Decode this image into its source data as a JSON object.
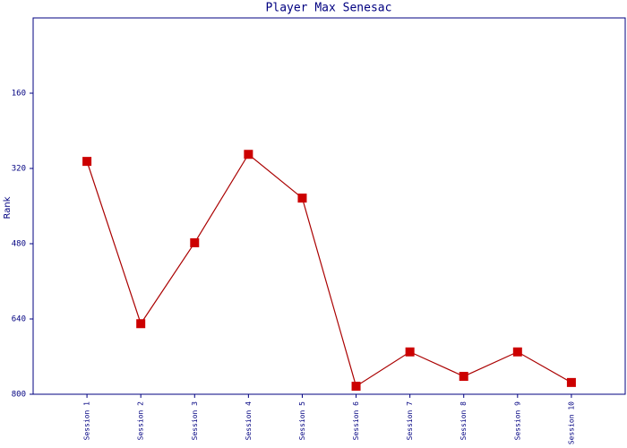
{
  "chart_data": {
    "type": "line",
    "title": "Player Max Senesac",
    "y_label": "Rank",
    "categories": [
      "Session 1",
      "Session 2",
      "Session 3",
      "Session 4",
      "Session 5",
      "Session 6",
      "Session 7",
      "Session 8",
      "Session 9",
      "Session 10"
    ],
    "values": [
      305,
      650,
      478,
      290,
      383,
      783,
      710,
      762,
      710,
      775
    ],
    "color": "#cc0000",
    "line_color": "#aa0000",
    "axis_color": "#000080",
    "ylim": [
      800,
      0
    ],
    "yticks": [
      160,
      320,
      480,
      640,
      800
    ],
    "grid": false
  }
}
